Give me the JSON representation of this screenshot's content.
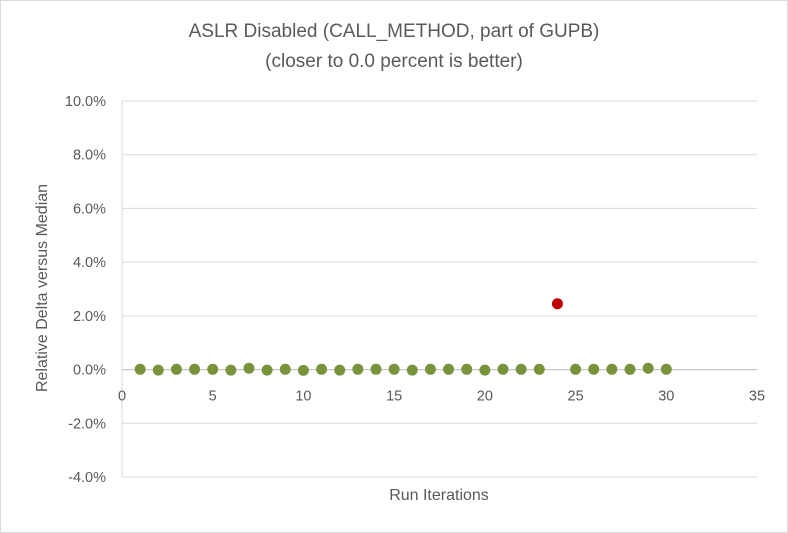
{
  "chart_data": {
    "type": "scatter",
    "title": "ASLR Disabled (CALL_METHOD, part of GUPB)",
    "subtitle": "(closer to 0.0 percent is better)",
    "xlabel": "Run Iterations",
    "ylabel": "Relative Delta versus Median",
    "xlim": [
      0,
      35
    ],
    "ylim": [
      -4.0,
      10.0
    ],
    "x_ticks": [
      0,
      5,
      10,
      15,
      20,
      25,
      30,
      35
    ],
    "x_tick_labels": [
      "0",
      "5",
      "10",
      "15",
      "20",
      "25",
      "30",
      "35"
    ],
    "y_ticks": [
      -4.0,
      -2.0,
      0.0,
      2.0,
      4.0,
      6.0,
      8.0,
      10.0
    ],
    "y_tick_labels": [
      "-4.0%",
      "-2.0%",
      "0.0%",
      "2.0%",
      "4.0%",
      "6.0%",
      "8.0%",
      "10.0%"
    ],
    "grid": "horizontal",
    "legend": "none",
    "colors": {
      "normal": "#77933c",
      "outlier": "#c00000",
      "gridline": "#d9d9d9",
      "text": "#595959"
    },
    "points": [
      {
        "x": 1,
        "y": 0.01,
        "outlier": false
      },
      {
        "x": 2,
        "y": -0.02,
        "outlier": false
      },
      {
        "x": 3,
        "y": 0.01,
        "outlier": false
      },
      {
        "x": 4,
        "y": 0.01,
        "outlier": false
      },
      {
        "x": 5,
        "y": 0.01,
        "outlier": false
      },
      {
        "x": 6,
        "y": -0.02,
        "outlier": false
      },
      {
        "x": 7,
        "y": 0.05,
        "outlier": false
      },
      {
        "x": 8,
        "y": -0.02,
        "outlier": false
      },
      {
        "x": 9,
        "y": 0.01,
        "outlier": false
      },
      {
        "x": 10,
        "y": -0.03,
        "outlier": false
      },
      {
        "x": 11,
        "y": 0.01,
        "outlier": false
      },
      {
        "x": 12,
        "y": -0.02,
        "outlier": false
      },
      {
        "x": 13,
        "y": 0.01,
        "outlier": false
      },
      {
        "x": 14,
        "y": 0.01,
        "outlier": false
      },
      {
        "x": 15,
        "y": 0.01,
        "outlier": false
      },
      {
        "x": 16,
        "y": -0.02,
        "outlier": false
      },
      {
        "x": 17,
        "y": 0.01,
        "outlier": false
      },
      {
        "x": 18,
        "y": 0.01,
        "outlier": false
      },
      {
        "x": 19,
        "y": 0.01,
        "outlier": false
      },
      {
        "x": 20,
        "y": -0.02,
        "outlier": false
      },
      {
        "x": 21,
        "y": 0.01,
        "outlier": false
      },
      {
        "x": 22,
        "y": 0.01,
        "outlier": false
      },
      {
        "x": 23,
        "y": 0.01,
        "outlier": false
      },
      {
        "x": 24,
        "y": 2.45,
        "outlier": true
      },
      {
        "x": 25,
        "y": 0.01,
        "outlier": false
      },
      {
        "x": 26,
        "y": 0.01,
        "outlier": false
      },
      {
        "x": 27,
        "y": 0.01,
        "outlier": false
      },
      {
        "x": 28,
        "y": 0.01,
        "outlier": false
      },
      {
        "x": 29,
        "y": 0.05,
        "outlier": false
      },
      {
        "x": 30,
        "y": 0.01,
        "outlier": false
      }
    ]
  }
}
